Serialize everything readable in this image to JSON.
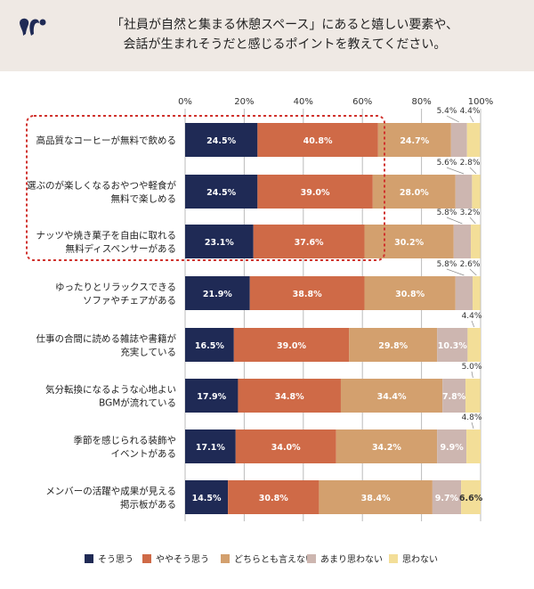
{
  "header": {
    "title_line1": "「社員が自然と集まる休憩スペース」にあると嬉しい要素や、",
    "title_line2": "会話が生まれそうだと感じるポイントを教えてください。"
  },
  "chart_data": {
    "type": "bar",
    "orientation": "horizontal-stacked-100",
    "xlim": [
      0,
      100
    ],
    "xticks": [
      "0%",
      "20%",
      "40%",
      "60%",
      "80%",
      "100%"
    ],
    "grid": true,
    "legend_placement": "bottom",
    "categories": [
      [
        "高品質なコーヒーが無料で飲める"
      ],
      [
        "選ぶのが楽しくなるおやつや軽食が",
        "無料で楽しめる"
      ],
      [
        "ナッツや焼き菓子を自由に取れる",
        "無料ディスペンサーがある"
      ],
      [
        "ゆったりとリラックスできる",
        "ソファやチェアがある"
      ],
      [
        "仕事の合間に読める雑誌や書籍が",
        "充実している"
      ],
      [
        "気分転換になるような心地よい",
        "BGMが流れている"
      ],
      [
        "季節を感じられる装飾や",
        "イベントがある"
      ],
      [
        "メンバーの活躍や成果が見える",
        "掲示板がある"
      ]
    ],
    "series": [
      {
        "name": "そう思う",
        "color": "#1f2a55",
        "values": [
          24.5,
          24.5,
          23.1,
          21.9,
          16.5,
          17.9,
          17.1,
          14.5
        ]
      },
      {
        "name": "ややそう思う",
        "color": "#cf6a47",
        "values": [
          40.8,
          39.0,
          37.6,
          38.8,
          39.0,
          34.8,
          34.0,
          30.8
        ]
      },
      {
        "name": "どちらとも言えない",
        "color": "#d3a06e",
        "values": [
          24.7,
          28.0,
          30.2,
          30.8,
          29.8,
          34.4,
          34.2,
          38.4
        ]
      },
      {
        "name": "あまり思わない",
        "color": "#cdb6b0",
        "values": [
          5.4,
          5.6,
          5.8,
          5.8,
          10.3,
          7.8,
          9.9,
          9.7
        ]
      },
      {
        "name": "思わない",
        "color": "#f3de98",
        "values": [
          4.4,
          2.8,
          3.2,
          2.6,
          4.4,
          5.0,
          4.8,
          6.6
        ]
      }
    ],
    "highlight_rows": [
      0,
      1,
      2
    ],
    "highlight_color": "#d0322d"
  }
}
